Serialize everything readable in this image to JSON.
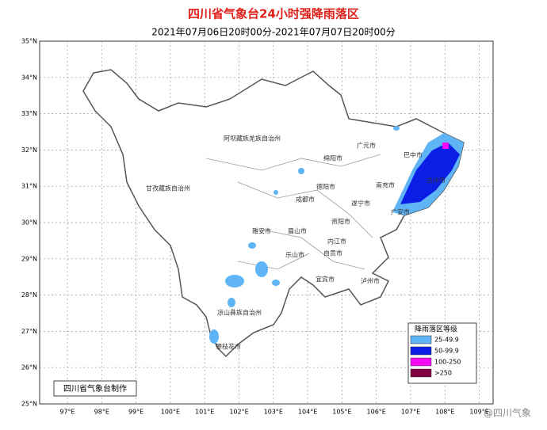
{
  "header": {
    "title": "四川省气象台24小时强降雨落区",
    "subtitle": "2021年07月06日20时00分-2021年07月07日20时00分"
  },
  "axes": {
    "lat_labels": [
      "35°N",
      "34°N",
      "33°N",
      "32°N",
      "31°N",
      "30°N",
      "29°N",
      "28°N",
      "27°N",
      "26°N",
      "25°N"
    ],
    "lon_labels": [
      "97°E",
      "98°E",
      "99°E",
      "100°E",
      "101°E",
      "102°E",
      "103°E",
      "104°E",
      "105°E",
      "106°E",
      "107°E",
      "108°E",
      "109°E"
    ]
  },
  "map": {
    "labels": [
      "阿坝藏族羌族自治州",
      "甘孜藏族自治州",
      "广元市",
      "巴中市",
      "绵阳市",
      "南充市",
      "达州市",
      "德阳市",
      "成都市",
      "遂宁市",
      "广安市",
      "资阳市",
      "雅安市",
      "眉山市",
      "内江市",
      "乐山市",
      "自贡市",
      "宜宾市",
      "泸州市",
      "凉山彝族自治州",
      "攀枝花市"
    ]
  },
  "legend": {
    "title": "降雨落区等级",
    "items": [
      {
        "label": "25-49.9",
        "color": "#5fb4f5"
      },
      {
        "label": "50-99.9",
        "color": "#0a1ee6"
      },
      {
        "label": "100-250",
        "color": "#f50af5"
      },
      {
        "label": ">250",
        "color": "#800040"
      }
    ]
  },
  "footer": "四川省气象台制作",
  "watermark": "@四川气象"
}
